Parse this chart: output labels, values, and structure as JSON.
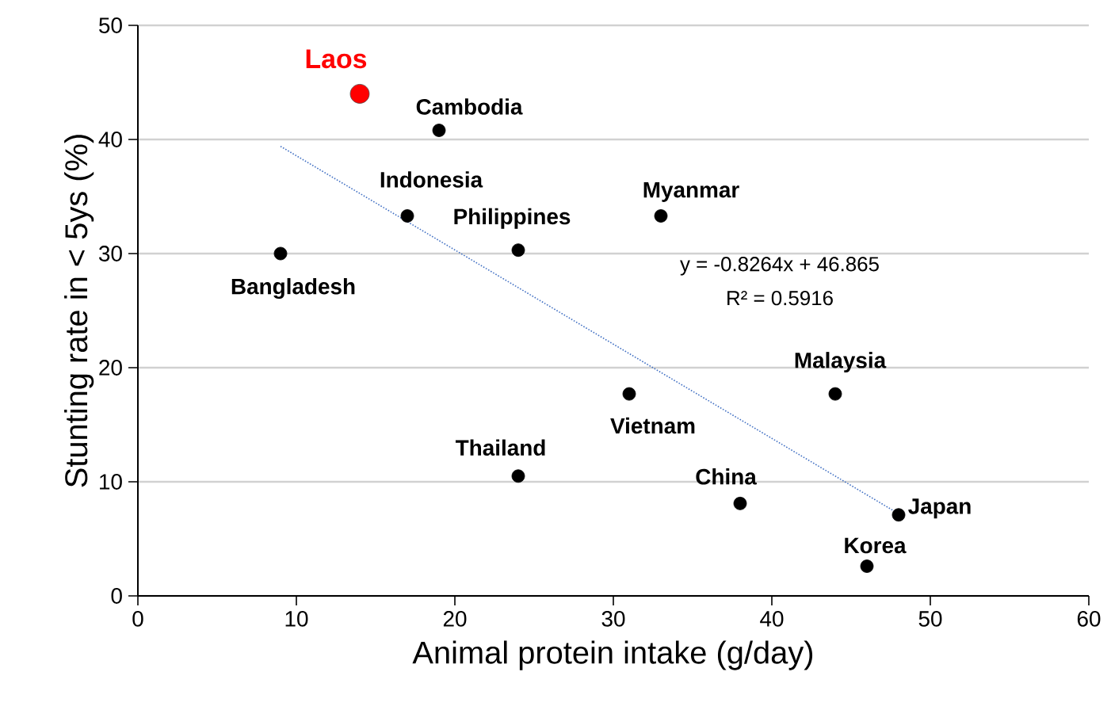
{
  "chart_data": {
    "type": "scatter",
    "xlabel": "Animal protein intake (g/day)",
    "ylabel": "Stunting rate in < 5ys (%)",
    "xlim": [
      0,
      60
    ],
    "ylim": [
      0,
      50
    ],
    "xticks": [
      0,
      10,
      20,
      30,
      40,
      50,
      60
    ],
    "yticks": [
      0,
      10,
      20,
      30,
      40,
      50
    ],
    "grid": "y",
    "marker": "circle",
    "series": [
      {
        "name": "Laos",
        "color": "#ff0000",
        "x": [
          14
        ],
        "values": [
          44.0
        ]
      },
      {
        "name": "Cambodia",
        "color": "#000000",
        "x": [
          19
        ],
        "values": [
          40.8
        ]
      },
      {
        "name": "Indonesia",
        "color": "#000000",
        "x": [
          17
        ],
        "values": [
          33.3
        ]
      },
      {
        "name": "Philippines",
        "color": "#000000",
        "x": [
          24
        ],
        "values": [
          30.3
        ]
      },
      {
        "name": "Bangladesh",
        "color": "#000000",
        "x": [
          9
        ],
        "values": [
          30.0
        ]
      },
      {
        "name": "Myanmar",
        "color": "#000000",
        "x": [
          33
        ],
        "values": [
          33.3
        ]
      },
      {
        "name": "Vietnam",
        "color": "#000000",
        "x": [
          31
        ],
        "values": [
          17.7
        ]
      },
      {
        "name": "Malaysia",
        "color": "#000000",
        "x": [
          44
        ],
        "values": [
          17.7
        ]
      },
      {
        "name": "Thailand",
        "color": "#000000",
        "x": [
          24
        ],
        "values": [
          10.5
        ]
      },
      {
        "name": "China",
        "color": "#000000",
        "x": [
          38
        ],
        "values": [
          8.1
        ]
      },
      {
        "name": "Japan",
        "color": "#000000",
        "x": [
          48
        ],
        "values": [
          7.1
        ]
      },
      {
        "name": "Korea",
        "color": "#000000",
        "x": [
          46
        ],
        "values": [
          2.6
        ]
      },
      {
        "type": "line",
        "color": "#4472c4",
        "line_style": "dotted",
        "marker": "none",
        "x": [
          9,
          48
        ],
        "values": [
          39.4,
          7.2
        ]
      }
    ],
    "annotations": [
      "y = -0.8264x + 46.865",
      "R² = 0.5916"
    ]
  }
}
